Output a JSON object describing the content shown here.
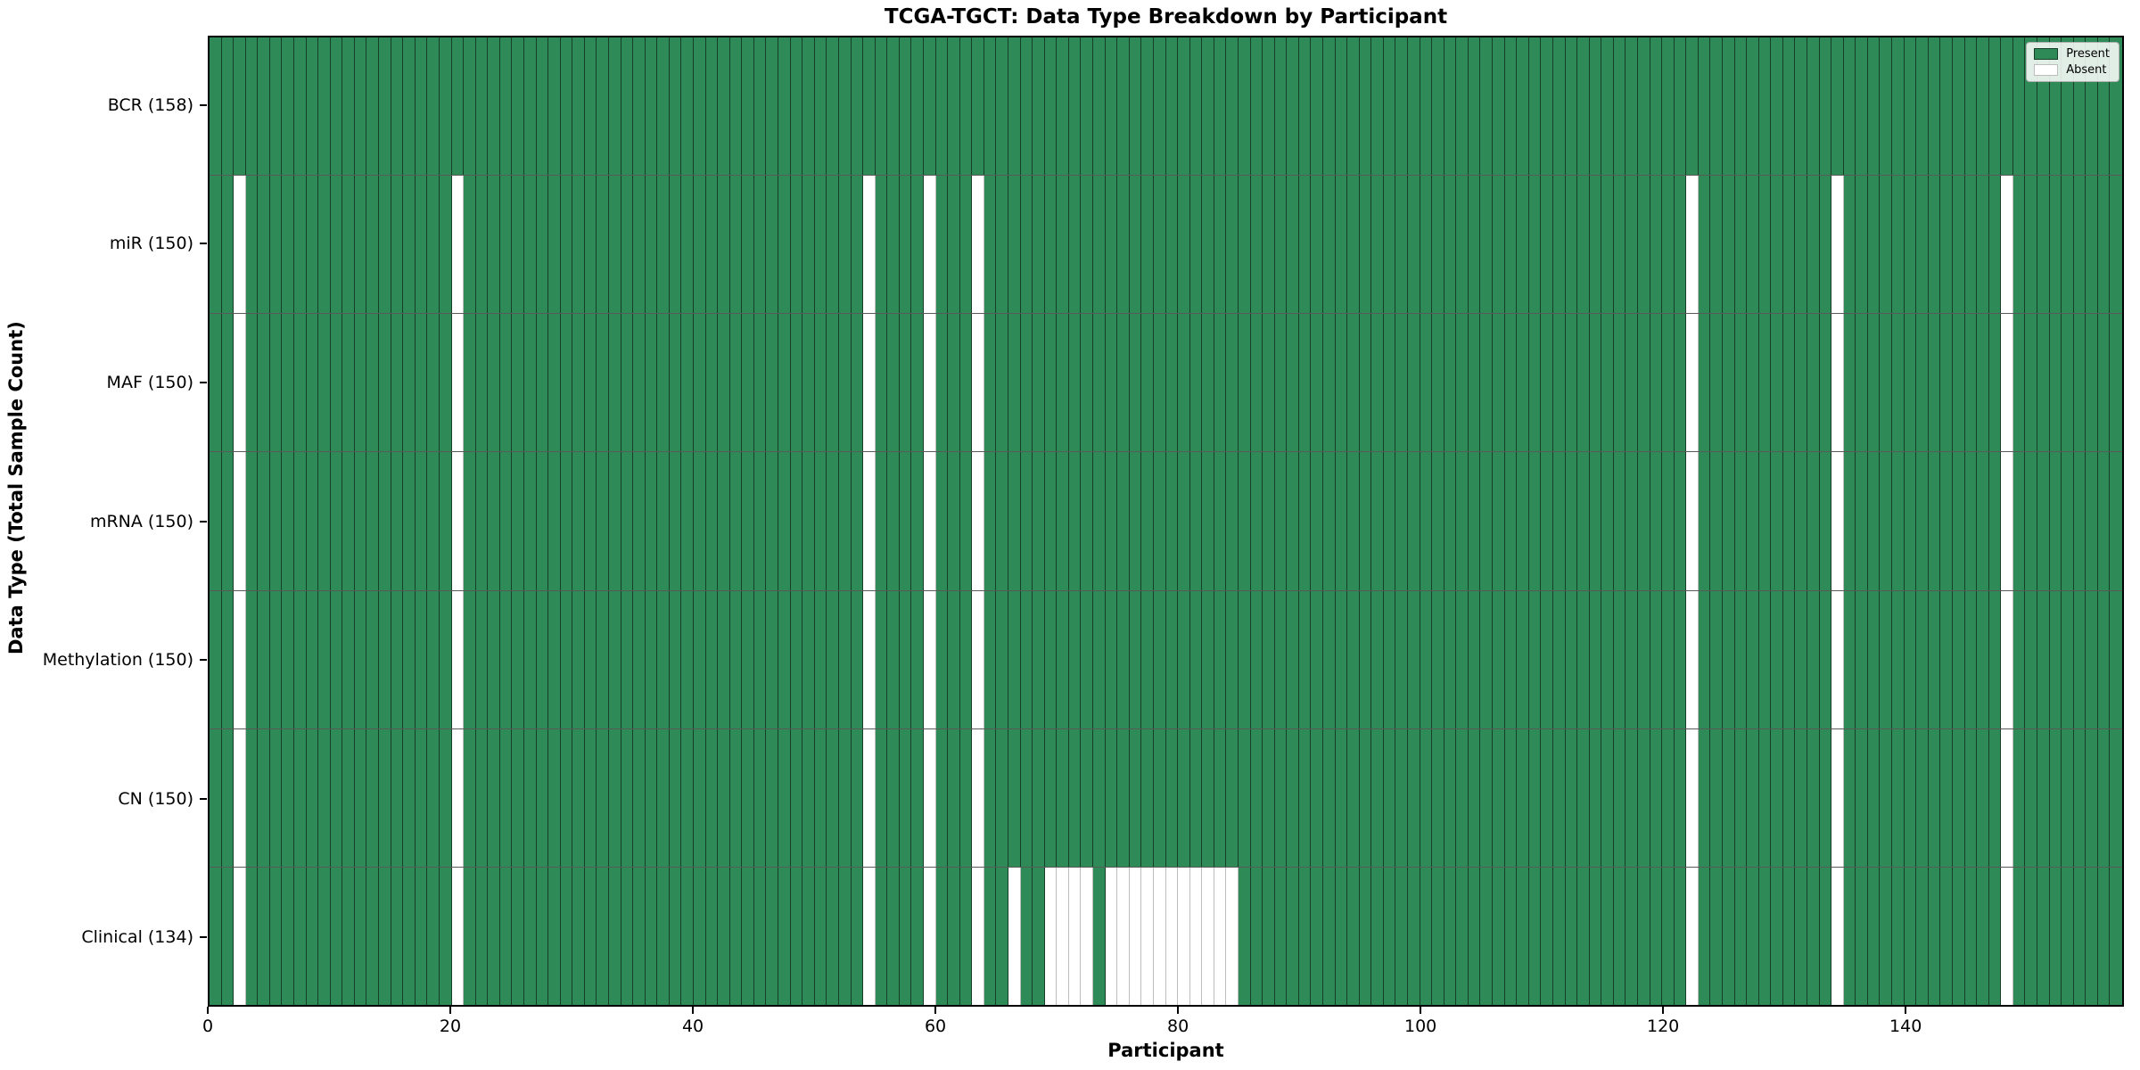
{
  "chart_data": {
    "type": "heatmap",
    "title": "TCGA-TGCT: Data Type Breakdown by Participant",
    "xlabel": "Participant",
    "ylabel": "Data Type (Total Sample Count)",
    "x_ticks": [
      0,
      20,
      40,
      60,
      80,
      100,
      120,
      140
    ],
    "x_range": [
      0,
      158
    ],
    "n_participants": 158,
    "grid": false,
    "legend_position": "upper right",
    "present_color": "#2e8b57",
    "absent_color": "#ffffff",
    "legend": [
      {
        "label": "Present",
        "color": "#2e8b57"
      },
      {
        "label": "Absent",
        "color": "#ffffff"
      }
    ],
    "rows": [
      {
        "label": "BCR (158)",
        "data_type": "BCR",
        "total_samples": 158,
        "absent_participants": []
      },
      {
        "label": "miR (150)",
        "data_type": "miR",
        "total_samples": 150,
        "absent_participants": [
          2,
          20,
          54,
          59,
          63,
          122,
          134,
          148
        ]
      },
      {
        "label": "MAF (150)",
        "data_type": "MAF",
        "total_samples": 150,
        "absent_participants": [
          2,
          20,
          54,
          59,
          63,
          122,
          134,
          148
        ]
      },
      {
        "label": "mRNA (150)",
        "data_type": "mRNA",
        "total_samples": 150,
        "absent_participants": [
          2,
          20,
          54,
          59,
          63,
          122,
          134,
          148
        ]
      },
      {
        "label": "Methylation (150)",
        "data_type": "Methylation",
        "total_samples": 150,
        "absent_participants": [
          2,
          20,
          54,
          59,
          63,
          122,
          134,
          148
        ]
      },
      {
        "label": "CN (150)",
        "data_type": "CN",
        "total_samples": 150,
        "absent_participants": [
          2,
          20,
          54,
          59,
          63,
          122,
          134,
          148
        ]
      },
      {
        "label": "Clinical (134)",
        "data_type": "Clinical",
        "total_samples": 134,
        "absent_participants": [
          2,
          20,
          54,
          59,
          63,
          66,
          69,
          70,
          71,
          72,
          74,
          75,
          76,
          77,
          78,
          79,
          80,
          81,
          82,
          83,
          84,
          122,
          134,
          148
        ]
      }
    ]
  }
}
